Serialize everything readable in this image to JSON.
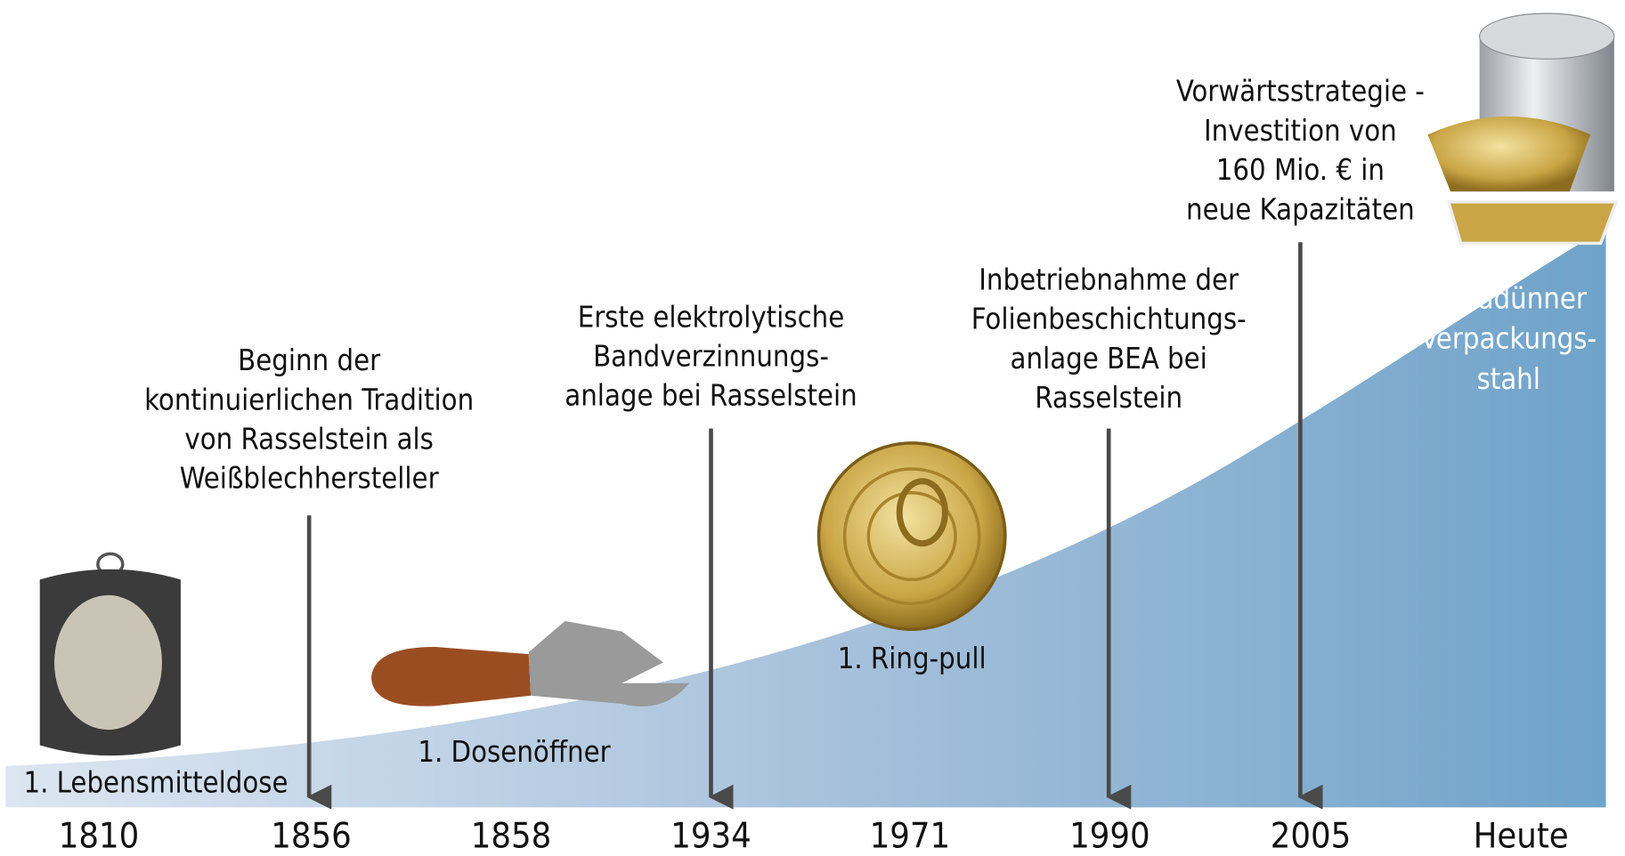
{
  "years": [
    "1810",
    "1856",
    "1858",
    "1934",
    "1971",
    "1990",
    "2005",
    "Heute"
  ],
  "events": [
    {
      "lines": [
        "Beginn der",
        "kontinuierlichen Tradition",
        "von Rasselstein als",
        "Weißblechhersteller"
      ]
    },
    {
      "lines": [
        "Erste elektrolytische",
        "Bandverzinnungs-",
        "anlage bei Rasselstein"
      ]
    },
    {
      "lines": [
        "Inbetriebnahme der",
        "Folienbeschichtungs-",
        "anlage BEA bei",
        "Rasselstein"
      ]
    },
    {
      "lines": [
        "Vorwärtsstrategie -",
        "Investition von",
        "160 Mio. € in",
        "neue Kapazitäten"
      ]
    }
  ],
  "products": [
    {
      "lines": [
        "1. Lebensmitteldose"
      ]
    },
    {
      "lines": [
        "1. Dosenöffner"
      ]
    },
    {
      "lines": [
        "1. Ring-pull"
      ]
    },
    {
      "lines": [
        "Ultradünner",
        "Verpackungs-",
        "stahl"
      ]
    }
  ]
}
